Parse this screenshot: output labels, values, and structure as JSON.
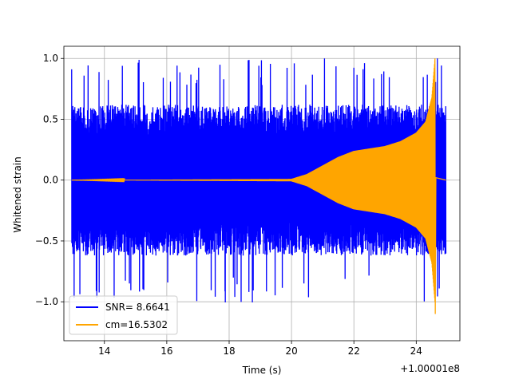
{
  "chart_data": {
    "type": "line",
    "xlabel": "Time (s)",
    "ylabel": "Whitened strain",
    "x_offset_label": "+1.00001e8",
    "xlim": [
      12.7,
      25.4
    ],
    "ylim": [
      -1.32,
      1.1
    ],
    "xticks": [
      14,
      16,
      18,
      20,
      22,
      24
    ],
    "xtick_labels": [
      "14",
      "16",
      "18",
      "20",
      "22",
      "24"
    ],
    "yticks": [
      -1.0,
      -0.5,
      0.0,
      0.5,
      1.0
    ],
    "ytick_labels": [
      "−1.0",
      "−0.5",
      "0.0",
      "0.5",
      "1.0"
    ],
    "grid": true,
    "legend_position": "lower-left",
    "series": [
      {
        "name": "SNR= 8.6641",
        "color": "#0000ff",
        "description_kind": "noise",
        "x_range": [
          12.95,
          24.95
        ],
        "typical_amplitude": 0.62,
        "peak_max": 1.0,
        "peak_min": -1.05
      },
      {
        "name": "cm=16.5302",
        "color": "#ffa500",
        "description_kind": "chirp",
        "x_range": [
          12.95,
          24.95
        ],
        "envelope": [
          [
            12.95,
            0.0
          ],
          [
            20.0,
            0.01
          ],
          [
            20.5,
            0.05
          ],
          [
            21.0,
            0.12
          ],
          [
            21.5,
            0.19
          ],
          [
            22.0,
            0.24
          ],
          [
            22.5,
            0.26
          ],
          [
            23.0,
            0.28
          ],
          [
            23.5,
            0.32
          ],
          [
            24.0,
            0.39
          ],
          [
            24.3,
            0.48
          ],
          [
            24.5,
            0.68
          ],
          [
            24.6,
            1.0
          ]
        ],
        "merger_time": 24.6,
        "peak_max": 1.0,
        "peak_min": -1.1
      }
    ]
  }
}
